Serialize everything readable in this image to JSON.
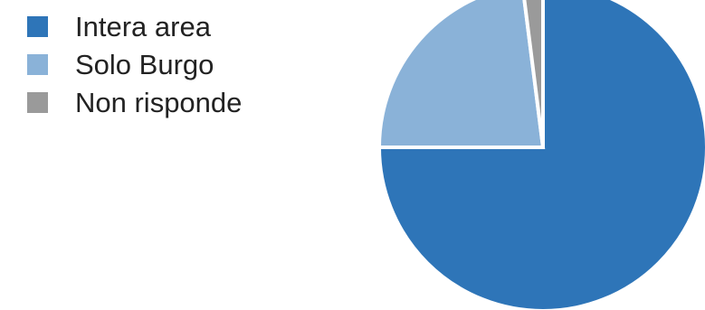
{
  "chart_data": {
    "type": "pie",
    "title": "",
    "legend_position": "top-left",
    "slices": [
      {
        "label": "Intera area",
        "value": 75,
        "color": "#2e75b8"
      },
      {
        "label": "Solo Burgo",
        "value": 23,
        "color": "#8ab2d8"
      },
      {
        "label": "Non risponde",
        "value": 2,
        "color": "#9a9a9a"
      }
    ]
  }
}
